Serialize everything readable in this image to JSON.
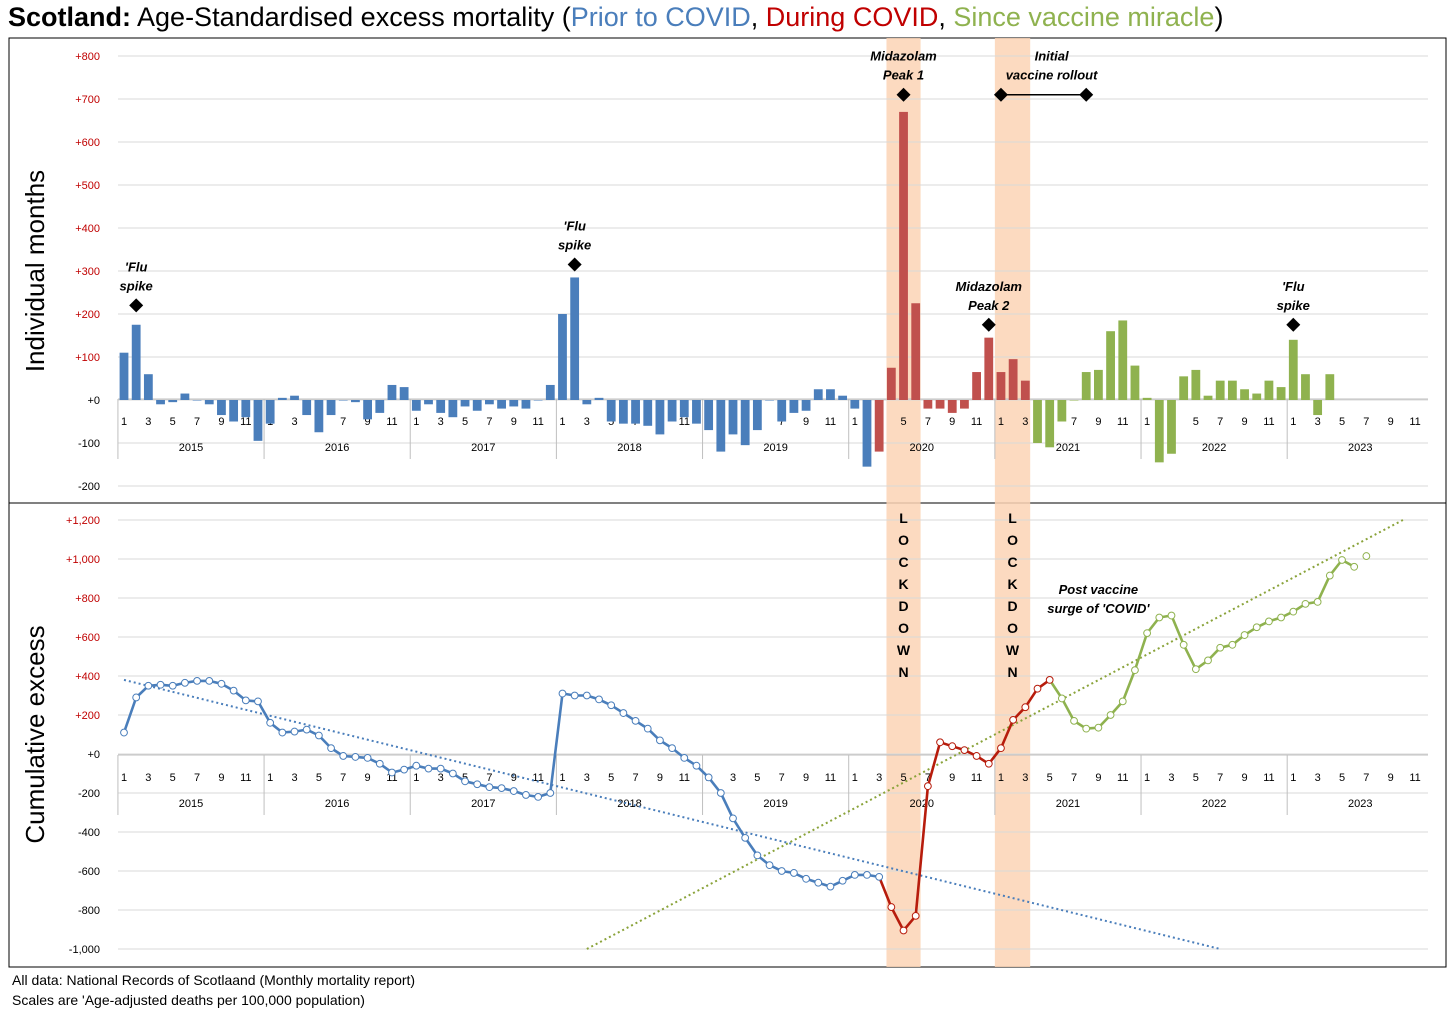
{
  "title": {
    "country": "Scotland:",
    "main": " Age-Standardised excess mortality (",
    "prior": "Prior to COVID",
    "sep1": ", ",
    "during": "During COVID",
    "sep2": ", ",
    "since": "Since vaccine miracle",
    "close": ")"
  },
  "colors": {
    "prior": "#4a7ebb",
    "during": "#c0504d",
    "during_line": "#b71c0c",
    "since": "#8fb24f",
    "shade": "#fbd3b5",
    "tick_red": "#c00000"
  },
  "footer": {
    "line1": "All data: National Records of Scotlaand (Monthly mortality report)",
    "line2": "Scales are 'Age-adjusted deaths per 100,000 population)"
  },
  "chart_data": [
    {
      "type": "bar",
      "ylabel": "Individual months",
      "ylim": [
        -200,
        800
      ],
      "y_ticks": [
        "+800",
        "+700",
        "+600",
        "+500",
        "+400",
        "+300",
        "+200",
        "+100",
        "+0",
        "-100",
        "-200"
      ],
      "x_month_ticks": [
        "1",
        "3",
        "5",
        "7",
        "9",
        "11"
      ],
      "years": [
        "2015",
        "2016",
        "2017",
        "2018",
        "2019",
        "2020",
        "2021",
        "2022",
        "2023"
      ],
      "values": [
        110,
        175,
        60,
        -10,
        -5,
        15,
        0,
        -10,
        -35,
        -50,
        -40,
        -95,
        -55,
        5,
        10,
        -35,
        -75,
        -35,
        0,
        -5,
        -45,
        -30,
        35,
        30,
        -25,
        -10,
        -30,
        -40,
        -15,
        -25,
        -10,
        -20,
        -15,
        -20,
        0,
        35,
        200,
        285,
        -10,
        5,
        -50,
        -55,
        -55,
        -60,
        -80,
        -50,
        -40,
        -55,
        -70,
        -120,
        -80,
        -105,
        -70,
        0,
        -50,
        -30,
        -25,
        25,
        25,
        10,
        -20,
        -155,
        -120,
        75,
        670,
        225,
        -20,
        -20,
        -30,
        -20,
        65,
        145,
        65,
        95,
        45,
        -100,
        -110,
        -50,
        0,
        65,
        70,
        160,
        185,
        80,
        5,
        -145,
        -125,
        55,
        70,
        10,
        45,
        45,
        25,
        15,
        45,
        30,
        140,
        60,
        -35,
        60
      ],
      "series_ranges": [
        {
          "name": "Prior to COVID",
          "start": 0,
          "end": 61
        },
        {
          "name": "During COVID",
          "start": 62,
          "end": 74
        },
        {
          "name": "Since vaccine miracle",
          "start": 75,
          "end": 98
        }
      ],
      "annotations": [
        {
          "text": [
            "'Flu",
            "spike"
          ],
          "month_index": 1,
          "value": 220
        },
        {
          "text": [
            "'Flu",
            "spike"
          ],
          "month_index": 37,
          "value": 315
        },
        {
          "text": [
            "Midazolam",
            "Peak 1"
          ],
          "month_index": 64,
          "value": 710
        },
        {
          "text": [
            "Initial",
            "vaccine rollout"
          ],
          "month_range": [
            72,
            79
          ],
          "value": 710
        },
        {
          "text": [
            "Midazolam",
            "Peak 2"
          ],
          "month_index": 71,
          "value": 175
        },
        {
          "text": [
            "'Flu",
            "spike"
          ],
          "month_index": 96,
          "value": 175
        }
      ]
    },
    {
      "type": "line",
      "ylabel": "Cumulative excess",
      "ylim": [
        -1000,
        1200
      ],
      "y_ticks": [
        "+1,200",
        "+1,000",
        "+800",
        "+600",
        "+400",
        "+200",
        "+0",
        "-200",
        "-400",
        "-600",
        "-800",
        "-1,000"
      ],
      "x_month_ticks": [
        "1",
        "3",
        "5",
        "7",
        "9",
        "11"
      ],
      "years": [
        "2015",
        "2016",
        "2017",
        "2018",
        "2019",
        "2020",
        "2021",
        "2022",
        "2023"
      ],
      "values": [
        110,
        290,
        350,
        355,
        350,
        365,
        375,
        375,
        360,
        325,
        275,
        270,
        160,
        110,
        115,
        125,
        95,
        30,
        -10,
        -15,
        -20,
        -50,
        -95,
        -80,
        -60,
        -75,
        -75,
        -100,
        -140,
        -155,
        -170,
        -175,
        -190,
        -210,
        -220,
        -200,
        310,
        300,
        300,
        280,
        250,
        210,
        170,
        130,
        70,
        30,
        -20,
        -60,
        -120,
        -200,
        -330,
        -430,
        -520,
        -570,
        -600,
        -610,
        -640,
        -660,
        -680,
        -650,
        -620,
        -620,
        -630,
        -785,
        -905,
        -830,
        -165,
        60,
        40,
        20,
        -10,
        -50,
        30,
        175,
        240,
        335,
        380,
        285,
        170,
        130,
        135,
        200,
        270,
        430,
        620,
        700,
        710,
        560,
        435,
        480,
        545,
        560,
        610,
        650,
        680,
        700,
        730,
        770,
        780,
        915,
        995,
        960,
        1015
      ],
      "series_ranges": [
        {
          "name": "Prior to COVID",
          "start": 0,
          "end": 62
        },
        {
          "name": "During COVID",
          "start": 62,
          "end": 76
        },
        {
          "name": "Since vaccine miracle",
          "start": 76,
          "end": 101
        }
      ],
      "trend_lines": [
        {
          "name": "prior",
          "from": [
            0,
            380
          ],
          "to": [
            90,
            -1000
          ]
        },
        {
          "name": "since",
          "from": [
            38,
            -1000
          ],
          "to": [
            105,
            1200
          ]
        }
      ],
      "lockdown_label": [
        "L",
        "O",
        "C",
        "K",
        "D",
        "O",
        "W",
        "N"
      ],
      "annotation": {
        "text": [
          "Post vaccine",
          "surge of 'COVID'"
        ],
        "month_index": 80,
        "value": 790
      }
    }
  ],
  "shaded_periods": [
    {
      "label": "LOCKDOWN",
      "start_month": 62.6,
      "end_month": 65.4
    },
    {
      "label": "LOCKDOWN",
      "start_month": 71.5,
      "end_month": 74.4
    }
  ]
}
